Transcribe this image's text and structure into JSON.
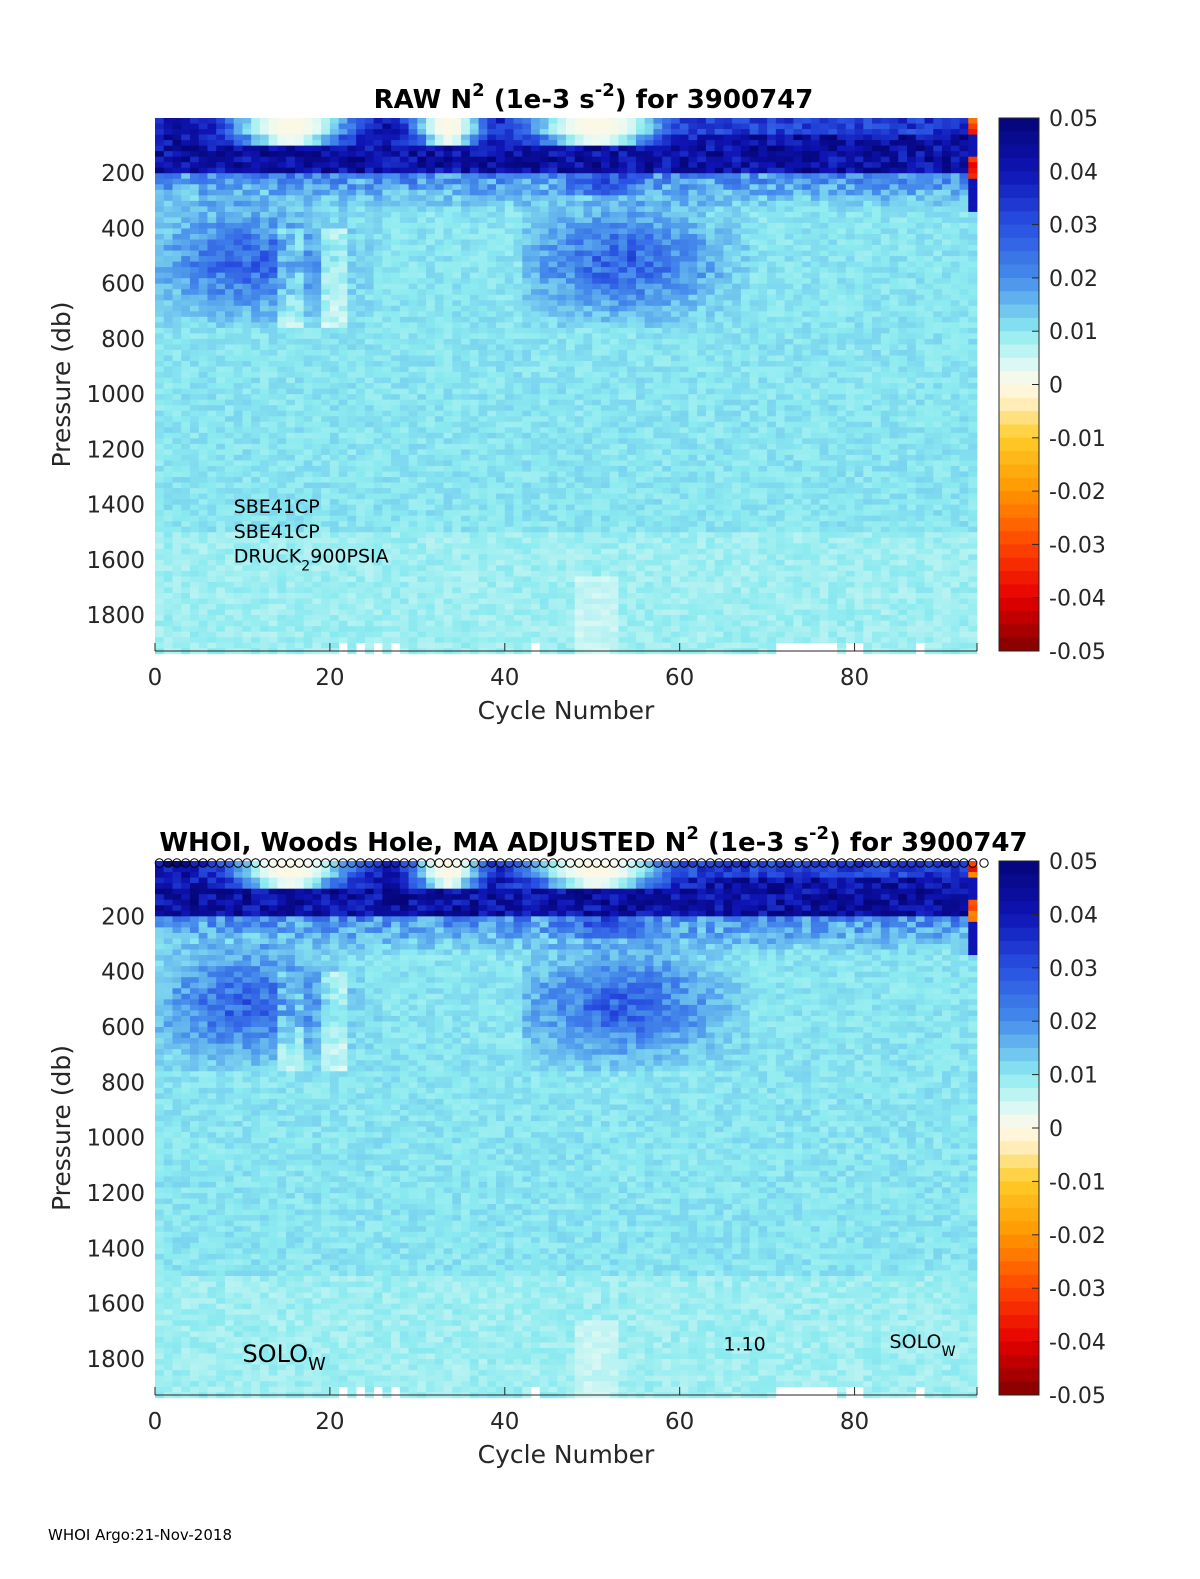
{
  "figure": {
    "footer": "WHOI Argo:21-Nov-2018"
  },
  "chart_data": [
    {
      "type": "heatmap",
      "title": {
        "main": "RAW N",
        "sup1": "2",
        "mid": " (1e-3 s",
        "sup2": "-2",
        "end": ") for 3900747"
      },
      "xlabel": "Cycle Number",
      "ylabel": "Pressure (db)",
      "xlim": [
        0,
        94
      ],
      "ylim": [
        1930,
        0
      ],
      "xticks": [
        "0",
        "20",
        "40",
        "60",
        "80"
      ],
      "xtick_values": [
        0,
        20,
        40,
        60,
        80
      ],
      "yticks": [
        "200",
        "400",
        "600",
        "800",
        "1000",
        "1200",
        "1400",
        "1600",
        "1800"
      ],
      "ytick_values": [
        200,
        400,
        600,
        800,
        1000,
        1200,
        1400,
        1600,
        1800
      ],
      "colorbar": {
        "range": [
          -0.05,
          0.05
        ],
        "colormap": "jet-white-center",
        "ticks": [
          "0.05",
          "0.04",
          "0.03",
          "0.02",
          "0.01",
          "0",
          "-0.01",
          "-0.02",
          "-0.03",
          "-0.04",
          "-0.05"
        ],
        "tick_values": [
          0.05,
          0.04,
          0.03,
          0.02,
          0.01,
          0,
          -0.01,
          -0.02,
          -0.03,
          -0.04,
          -0.05
        ]
      },
      "annotations": [
        {
          "text": "SBE41CP",
          "x": 9,
          "y": 1430
        },
        {
          "text": "SBE41CP",
          "x": 9,
          "y": 1520
        },
        {
          "text": "DRUCK",
          "sub": "2",
          "tail": "900PSIA",
          "x": 9,
          "y": 1610
        }
      ],
      "qc_markers": false,
      "profile_depth_db": [
        1930,
        1930,
        1930,
        1930,
        1930,
        1930,
        1930,
        1930,
        1930,
        1930,
        1930,
        1930,
        1930,
        1930,
        1930,
        1930,
        1930,
        1930,
        1930,
        1930,
        1930,
        1895,
        1930,
        1895,
        1930,
        1895,
        1930,
        1895,
        1930,
        1930,
        1930,
        1930,
        1930,
        1930,
        1930,
        1930,
        1930,
        1930,
        1930,
        1930,
        1930,
        1930,
        1930,
        1890,
        1930,
        1930,
        1930,
        1930,
        1930,
        1930,
        1930,
        1930,
        1930,
        1930,
        1930,
        1930,
        1930,
        1930,
        1930,
        1930,
        1930,
        1930,
        1930,
        1930,
        1930,
        1930,
        1930,
        1930,
        1930,
        1930,
        1930,
        1890,
        1890,
        1890,
        1890,
        1890,
        1890,
        1890,
        1930,
        1890,
        1890,
        1930,
        1930,
        1930,
        1930,
        1930,
        1930,
        1890,
        1930,
        1930,
        1930,
        1930,
        1930,
        1930
      ]
    },
    {
      "type": "heatmap",
      "title": {
        "main": "WHOI, Woods Hole, MA  ADJUSTED N",
        "sup1": "2",
        "mid": " (1e-3 s",
        "sup2": "-2",
        "end": ") for 3900747"
      },
      "xlabel": "Cycle Number",
      "ylabel": "Pressure (db)",
      "xlim": [
        0,
        94
      ],
      "ylim": [
        1930,
        0
      ],
      "xticks": [
        "0",
        "20",
        "40",
        "60",
        "80"
      ],
      "xtick_values": [
        0,
        20,
        40,
        60,
        80
      ],
      "yticks": [
        "200",
        "400",
        "600",
        "800",
        "1000",
        "1200",
        "1400",
        "1600",
        "1800"
      ],
      "ytick_values": [
        200,
        400,
        600,
        800,
        1000,
        1200,
        1400,
        1600,
        1800
      ],
      "colorbar": {
        "range": [
          -0.05,
          0.05
        ],
        "colormap": "jet-white-center",
        "ticks": [
          "0.05",
          "0.04",
          "0.03",
          "0.02",
          "0.01",
          "0",
          "-0.01",
          "-0.02",
          "-0.03",
          "-0.04",
          "-0.05"
        ],
        "tick_values": [
          0.05,
          0.04,
          0.03,
          0.02,
          0.01,
          0,
          -0.01,
          -0.02,
          -0.03,
          -0.04,
          -0.05
        ]
      },
      "annotations": [
        {
          "text": "SOLO",
          "sub": "W",
          "x": 10,
          "y": 1810,
          "size": "large"
        },
        {
          "text": "1.10",
          "x": 65,
          "y": 1770,
          "size": "small"
        },
        {
          "text": "SOLO",
          "sub": "W",
          "x": 84,
          "y": 1760,
          "size": "small"
        }
      ],
      "qc_markers": true,
      "profile_depth_db": [
        1930,
        1930,
        1930,
        1930,
        1930,
        1930,
        1930,
        1930,
        1930,
        1930,
        1930,
        1930,
        1930,
        1930,
        1930,
        1930,
        1930,
        1930,
        1930,
        1930,
        1930,
        1895,
        1930,
        1895,
        1930,
        1895,
        1930,
        1895,
        1930,
        1930,
        1930,
        1930,
        1930,
        1930,
        1930,
        1930,
        1930,
        1930,
        1930,
        1930,
        1930,
        1930,
        1930,
        1890,
        1930,
        1930,
        1930,
        1930,
        1930,
        1930,
        1930,
        1930,
        1930,
        1930,
        1930,
        1930,
        1930,
        1930,
        1930,
        1930,
        1930,
        1930,
        1930,
        1930,
        1930,
        1930,
        1930,
        1930,
        1930,
        1930,
        1930,
        1890,
        1890,
        1890,
        1890,
        1890,
        1890,
        1890,
        1930,
        1890,
        1890,
        1930,
        1930,
        1930,
        1930,
        1930,
        1930,
        1890,
        1930,
        1930,
        1930,
        1930,
        1930,
        1930
      ]
    }
  ]
}
